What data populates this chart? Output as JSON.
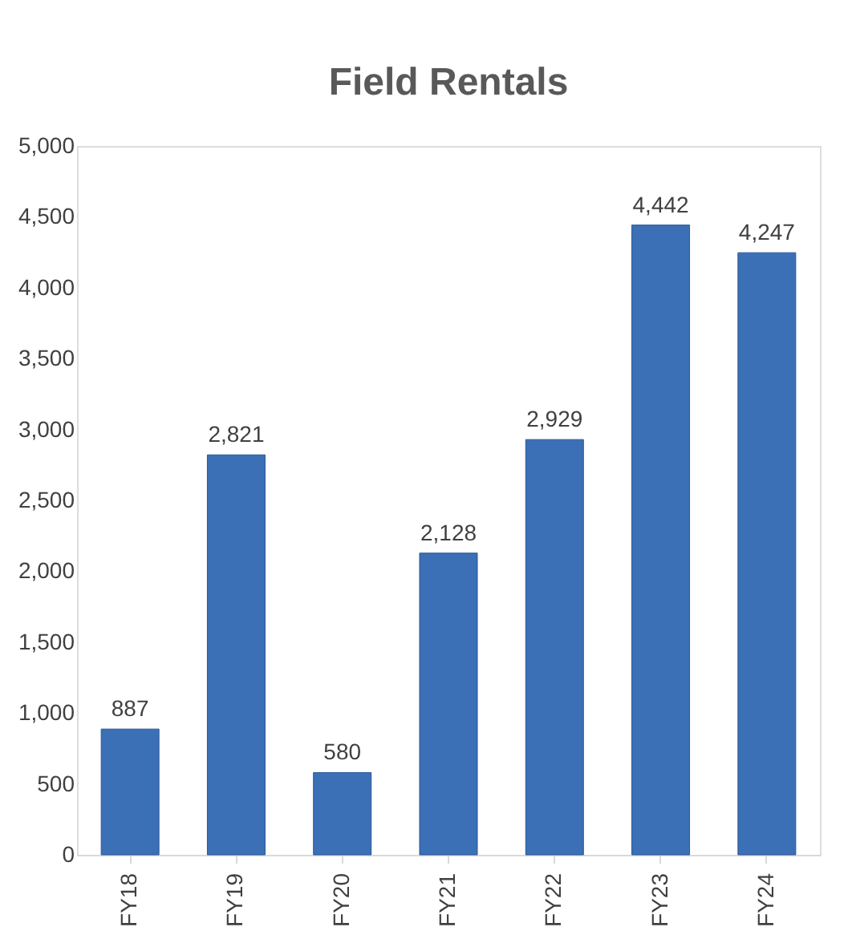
{
  "chart_data": {
    "type": "bar",
    "title": "Field Rentals",
    "categories": [
      "FY18",
      "FY19",
      "FY20",
      "FY21",
      "FY22",
      "FY23",
      "FY24"
    ],
    "values": [
      887,
      2821,
      580,
      2128,
      2929,
      4442,
      4247
    ],
    "value_labels": [
      "887",
      "2,821",
      "580",
      "2,128",
      "2,929",
      "4,442",
      "4,247"
    ],
    "color": "#3b6fb6",
    "ylim": [
      0,
      5000
    ],
    "yticks": [
      0,
      {
        "value": 500,
        "label": "500"
      },
      {
        "value": 1000,
        "label": "1,000"
      },
      {
        "value": 1500,
        "label": "1,500"
      },
      {
        "value": 2000,
        "label": "2,000"
      },
      {
        "value": 2500,
        "label": "2,500"
      },
      {
        "value": 3000,
        "label": "3,000"
      },
      {
        "value": 3500,
        "label": "3,500"
      },
      {
        "value": 4000,
        "label": "4,000"
      },
      {
        "value": 4500,
        "label": "4,500"
      },
      {
        "value": 5000,
        "label": "5,000"
      }
    ],
    "grid": false
  }
}
